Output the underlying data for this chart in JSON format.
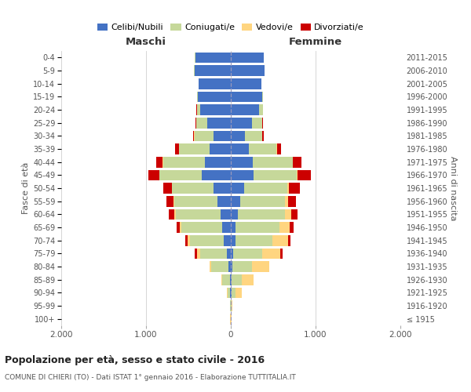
{
  "age_groups": [
    "100+",
    "95-99",
    "90-94",
    "85-89",
    "80-84",
    "75-79",
    "70-74",
    "65-69",
    "60-64",
    "55-59",
    "50-54",
    "45-49",
    "40-44",
    "35-39",
    "30-34",
    "25-29",
    "20-24",
    "15-19",
    "10-14",
    "5-9",
    "0-4"
  ],
  "birth_years": [
    "≤ 1915",
    "1916-1920",
    "1921-1925",
    "1926-1930",
    "1931-1935",
    "1936-1940",
    "1941-1945",
    "1946-1950",
    "1951-1955",
    "1956-1960",
    "1961-1965",
    "1966-1970",
    "1971-1975",
    "1976-1980",
    "1981-1985",
    "1986-1990",
    "1991-1995",
    "1996-2000",
    "2001-2005",
    "2006-2010",
    "2011-2015"
  ],
  "maschi": {
    "celibi": [
      2,
      2,
      5,
      10,
      30,
      50,
      80,
      100,
      120,
      160,
      200,
      340,
      310,
      250,
      200,
      280,
      360,
      390,
      380,
      430,
      420
    ],
    "coniugati": [
      2,
      3,
      35,
      90,
      200,
      310,
      400,
      480,
      530,
      510,
      490,
      500,
      490,
      360,
      230,
      130,
      40,
      5,
      3,
      2,
      2
    ],
    "vedovi": [
      1,
      2,
      5,
      15,
      20,
      35,
      30,
      20,
      15,
      10,
      5,
      5,
      4,
      3,
      2,
      1,
      1,
      0,
      0,
      0,
      0
    ],
    "divorziati": [
      0,
      0,
      0,
      0,
      0,
      30,
      30,
      40,
      70,
      80,
      100,
      130,
      80,
      40,
      15,
      5,
      2,
      0,
      0,
      0,
      0
    ]
  },
  "femmine": {
    "nubili": [
      2,
      2,
      5,
      10,
      20,
      30,
      55,
      60,
      80,
      110,
      160,
      270,
      260,
      210,
      170,
      250,
      330,
      370,
      360,
      400,
      390
    ],
    "coniugate": [
      2,
      4,
      50,
      120,
      230,
      340,
      440,
      510,
      560,
      530,
      510,
      510,
      470,
      330,
      200,
      120,
      45,
      8,
      2,
      2,
      1
    ],
    "vedove": [
      3,
      10,
      70,
      140,
      200,
      210,
      180,
      120,
      70,
      35,
      15,
      10,
      6,
      4,
      2,
      1,
      1,
      0,
      0,
      0,
      0
    ],
    "divorziate": [
      0,
      0,
      0,
      0,
      0,
      35,
      30,
      50,
      75,
      90,
      130,
      150,
      100,
      50,
      15,
      5,
      2,
      0,
      0,
      0,
      0
    ]
  },
  "color_celibi": "#4472C4",
  "color_coniugati": "#C6D89A",
  "color_vedovi": "#FFD580",
  "color_divorziati": "#CC0000",
  "title": "Popolazione per età, sesso e stato civile - 2016",
  "subtitle": "COMUNE DI CHIERI (TO) - Dati ISTAT 1° gennaio 2016 - Elaborazione TUTTITALIA.IT",
  "xlabel_left": "Maschi",
  "xlabel_right": "Femmine",
  "ylabel_left": "Fasce di età",
  "ylabel_right": "Anni di nascita",
  "xlim": 2000,
  "xtick_labels": [
    "2.000",
    "1.000",
    "0",
    "1.000",
    "2.000"
  ],
  "xtick_vals": [
    -2000,
    -1000,
    0,
    1000,
    2000
  ]
}
